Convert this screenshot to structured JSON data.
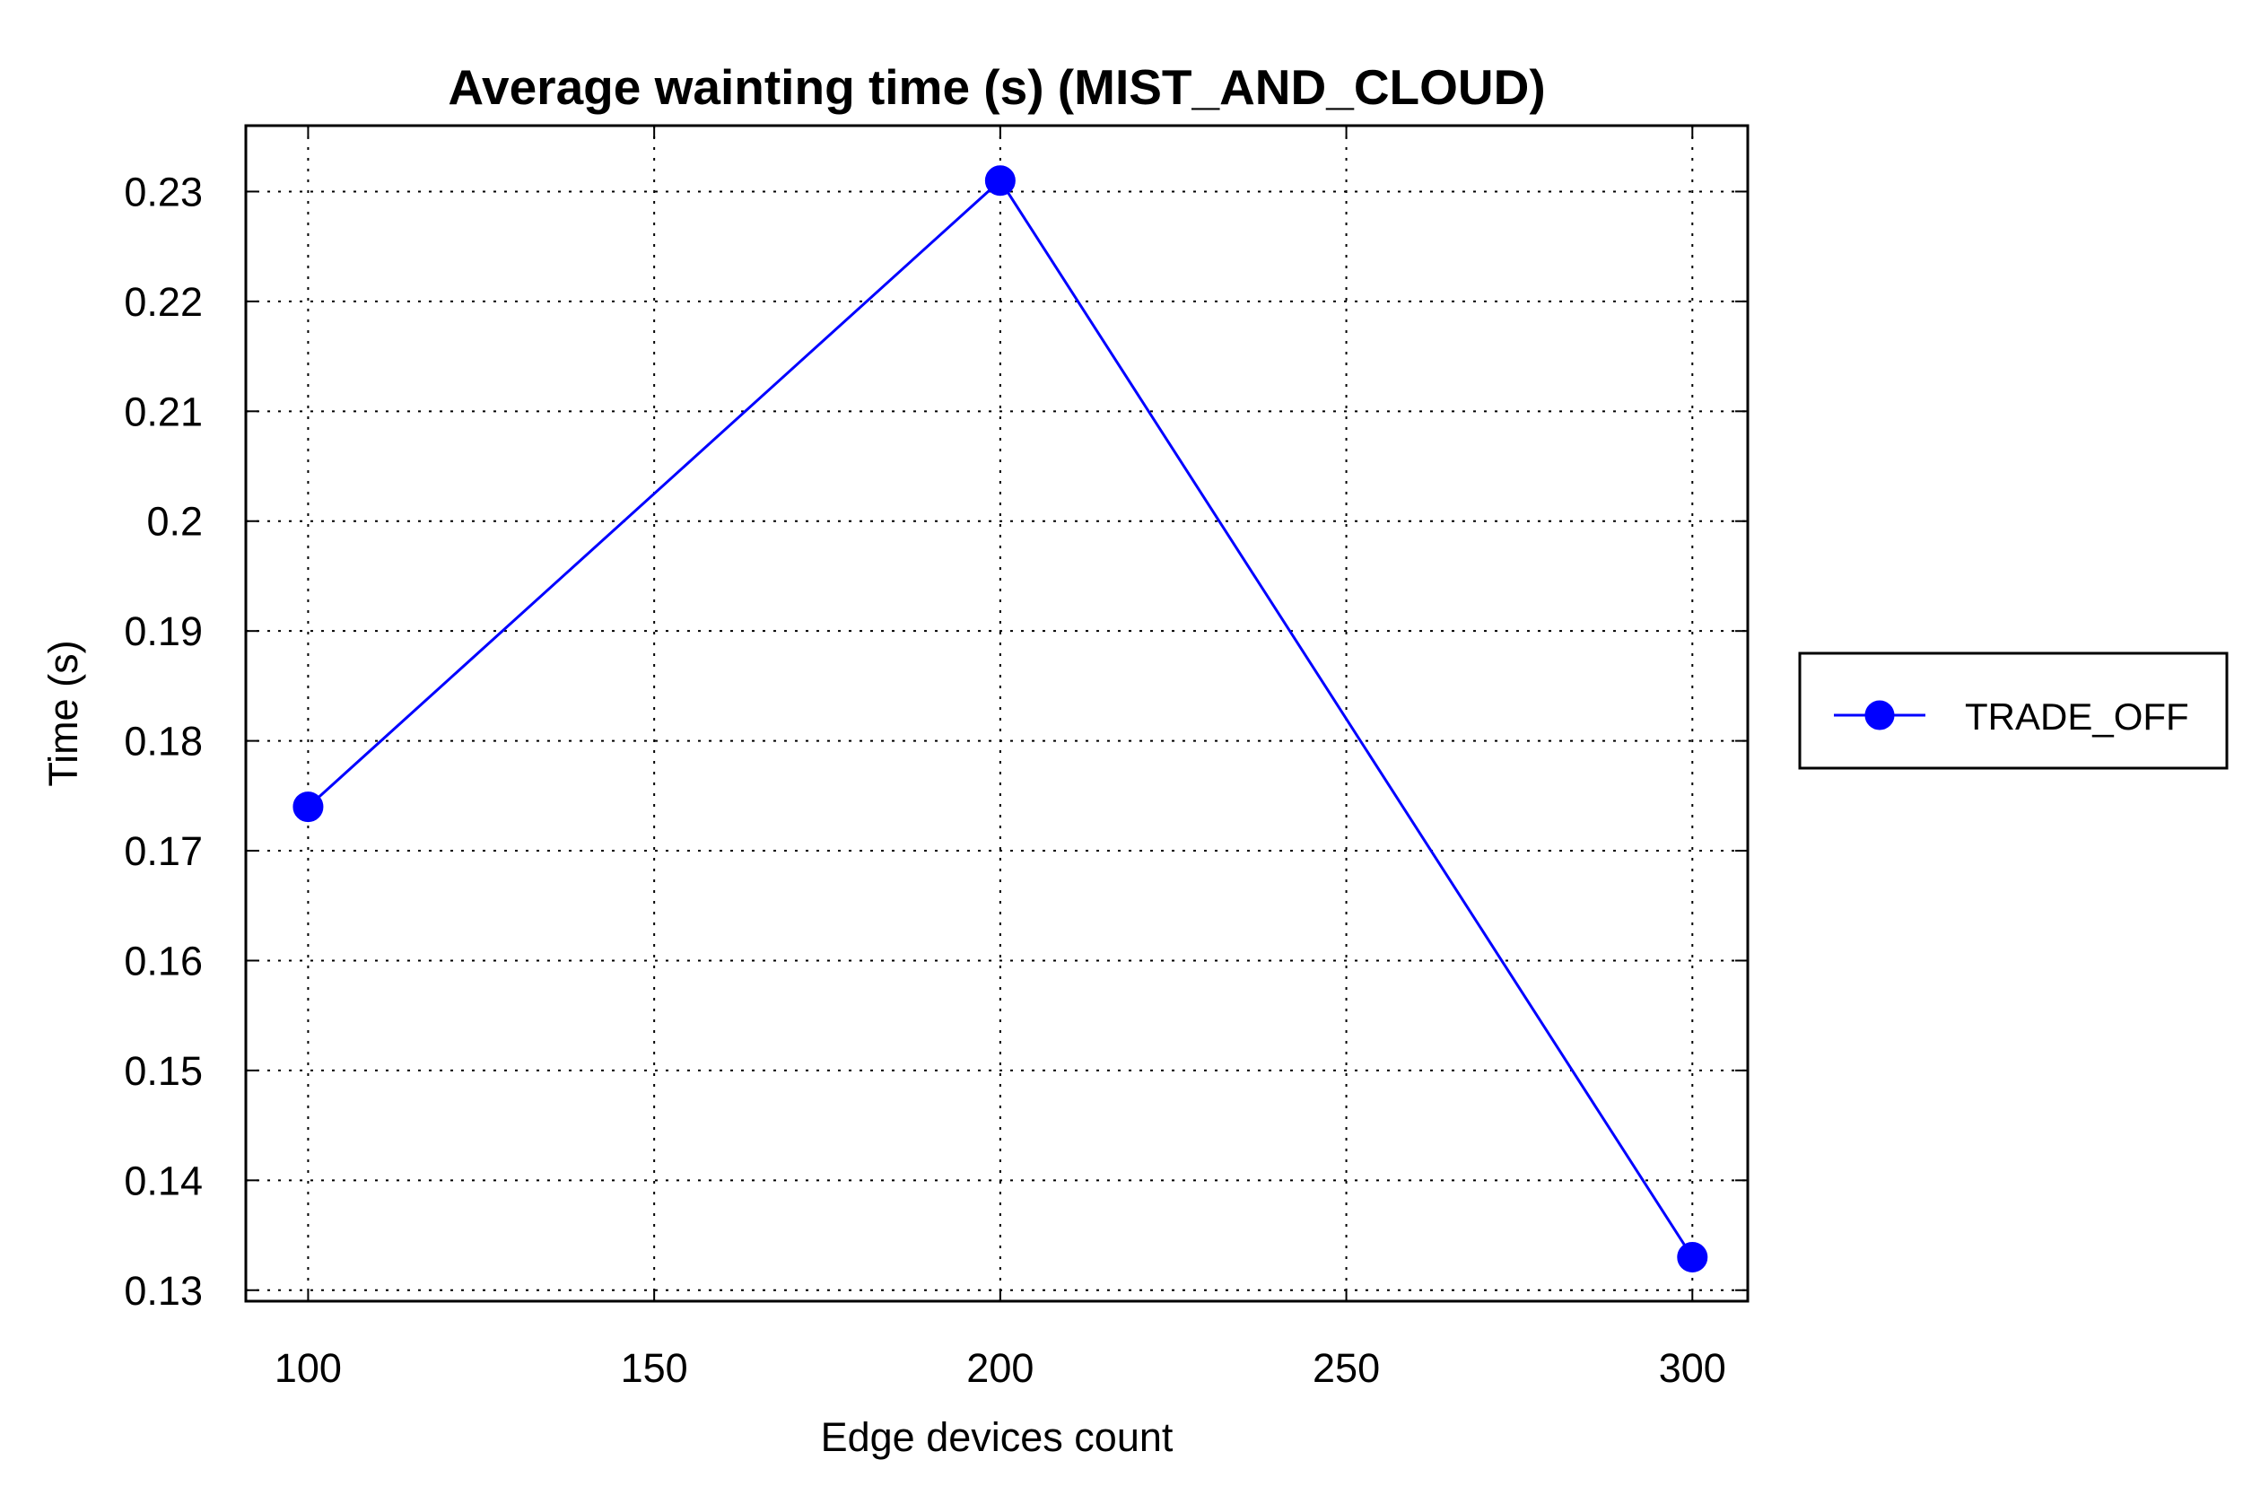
{
  "chart_data": {
    "type": "line",
    "title": "Average wainting time (s) (MIST_AND_CLOUD)",
    "xlabel": "Edge devices count",
    "ylabel": "Time (s)",
    "x": [
      100,
      200,
      300
    ],
    "series": [
      {
        "name": "TRADE_OFF",
        "values": [
          0.174,
          0.231,
          0.133
        ],
        "color": "#0000ff",
        "marker": "circle"
      }
    ],
    "xlim": [
      91,
      308
    ],
    "ylim": [
      0.129,
      0.236
    ],
    "xticks": [
      100,
      150,
      200,
      250,
      300
    ],
    "yticks": [
      0.13,
      0.14,
      0.15,
      0.16,
      0.17,
      0.18,
      0.19,
      0.2,
      0.21,
      0.22,
      0.23
    ],
    "xtick_labels": [
      "100",
      "150",
      "200",
      "250",
      "300"
    ],
    "ytick_labels": [
      "0.13",
      "0.14",
      "0.15",
      "0.16",
      "0.17",
      "0.18",
      "0.19",
      "0.2",
      "0.21",
      "0.22",
      "0.23"
    ],
    "grid": true,
    "grid_style": "dotted",
    "legend_position": "right-outside"
  }
}
